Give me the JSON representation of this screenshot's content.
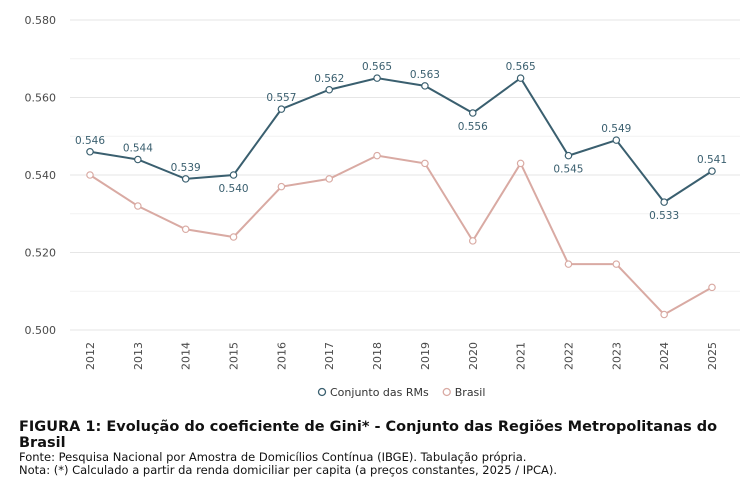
{
  "chart_data": {
    "type": "line",
    "categories": [
      "2012",
      "2013",
      "2014",
      "2015",
      "2016",
      "2017",
      "2018",
      "2019",
      "2020",
      "2021",
      "2022",
      "2023",
      "2024",
      "2025"
    ],
    "series": [
      {
        "name": "Conjunto das RMs",
        "color": "#3a5f6f",
        "values": [
          0.546,
          0.544,
          0.539,
          0.54,
          0.557,
          0.562,
          0.565,
          0.563,
          0.556,
          0.565,
          0.545,
          0.549,
          0.533,
          0.541
        ],
        "data_labels": [
          "0.546",
          "0.544",
          "0.539",
          "0.540",
          "0.557",
          "0.562",
          "0.565",
          "0.563",
          "0.556",
          "0.565",
          "0.545",
          "0.549",
          "0.533",
          "0.541"
        ]
      },
      {
        "name": "Brasil",
        "color": "#d9aaa3",
        "values": [
          0.54,
          0.532,
          0.526,
          0.524,
          0.537,
          0.539,
          0.545,
          0.543,
          0.523,
          0.543,
          0.517,
          0.517,
          0.504,
          0.511
        ]
      }
    ],
    "yticks": [
      "0.500",
      "0.520",
      "0.540",
      "0.560",
      "0.580"
    ],
    "ylim": [
      0.5,
      0.58
    ],
    "grid": true,
    "legend_position": "bottom"
  },
  "caption": {
    "title": "FIGURA 1: Evolução do coeficiente de Gini* - Conjunto das Regiões Metropolitanas do Brasil",
    "source": "Fonte: Pesquisa Nacional por Amostra de Domicílios Contínua (IBGE). Tabulação própria.",
    "note": "Nota: (*) Calculado a partir da renda domiciliar per capita (a preços constantes, 2025 / IPCA)."
  }
}
